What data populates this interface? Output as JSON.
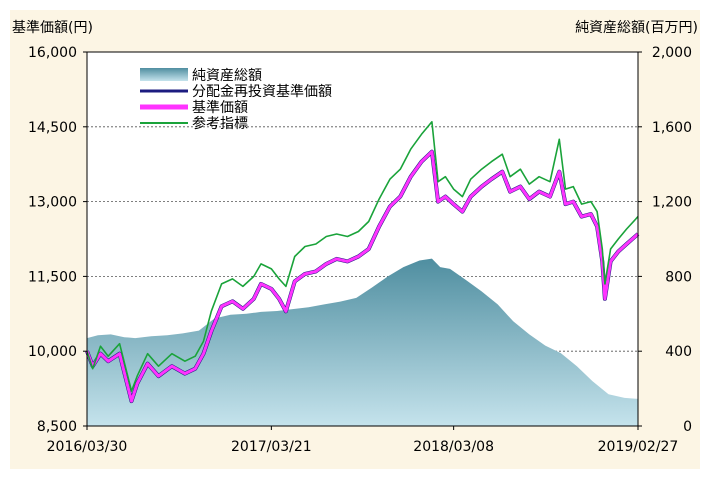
{
  "chart_data": {
    "type": "line",
    "y_left_title": "基準価額(円)",
    "y_right_title": "純資産総額(百万円)",
    "y_left_range": [
      8500,
      16000
    ],
    "y_left_ticks": [
      "8,500",
      "10,000",
      "11,500",
      "13,000",
      "14,500",
      "16,000"
    ],
    "y_left_tick_values": [
      8500,
      10000,
      11500,
      13000,
      14500,
      16000
    ],
    "y_right_range": [
      0,
      2000
    ],
    "y_right_ticks": [
      "0",
      "400",
      "800",
      "1,200",
      "1,600",
      "2,000"
    ],
    "y_right_tick_values": [
      0,
      400,
      800,
      1200,
      1600,
      2000
    ],
    "x_range": [
      "2016-03-30",
      "2019-02-27"
    ],
    "x_ticks": [
      "2016/03/30",
      "2017/03/21",
      "2018/03/08",
      "2019/02/27"
    ],
    "x_tick_dates": [
      "2016-03-30",
      "2017-03-21",
      "2018-03-08",
      "2019-02-27"
    ],
    "grid": "horizontal-dotted",
    "legend": {
      "placement": "top-left",
      "entries": [
        "純資産総額",
        "分配金再投資基準価額",
        "基準価額",
        "参考指標"
      ]
    },
    "colors": {
      "area_top": "#4f8ea0",
      "area_bottom": "#c5e3ec",
      "reinvest": "#1c1c80",
      "nav": "#ff33ff",
      "benchmark": "#1aa33a",
      "frame_bg": "#fcf5e4"
    },
    "series": [
      {
        "name": "純資産総額",
        "axis": "right",
        "kind": "area",
        "points": [
          [
            "2016-03-30",
            470
          ],
          [
            "2016-04-20",
            485
          ],
          [
            "2016-05-15",
            490
          ],
          [
            "2016-06-10",
            475
          ],
          [
            "2016-07-01",
            470
          ],
          [
            "2016-08-01",
            480
          ],
          [
            "2016-09-01",
            485
          ],
          [
            "2016-10-01",
            495
          ],
          [
            "2016-11-01",
            510
          ],
          [
            "2016-12-01",
            575
          ],
          [
            "2017-01-01",
            595
          ],
          [
            "2017-02-01",
            600
          ],
          [
            "2017-03-01",
            610
          ],
          [
            "2017-04-01",
            615
          ],
          [
            "2017-05-01",
            625
          ],
          [
            "2017-06-01",
            635
          ],
          [
            "2017-07-01",
            650
          ],
          [
            "2017-08-01",
            665
          ],
          [
            "2017-09-01",
            685
          ],
          [
            "2017-10-01",
            740
          ],
          [
            "2017-11-01",
            800
          ],
          [
            "2017-12-01",
            850
          ],
          [
            "2018-01-01",
            885
          ],
          [
            "2018-01-25",
            895
          ],
          [
            "2018-02-10",
            850
          ],
          [
            "2018-03-01",
            840
          ],
          [
            "2018-04-01",
            780
          ],
          [
            "2018-05-01",
            720
          ],
          [
            "2018-06-01",
            650
          ],
          [
            "2018-07-01",
            560
          ],
          [
            "2018-08-01",
            490
          ],
          [
            "2018-09-01",
            430
          ],
          [
            "2018-10-01",
            390
          ],
          [
            "2018-11-01",
            320
          ],
          [
            "2018-12-01",
            240
          ],
          [
            "2019-01-01",
            170
          ],
          [
            "2019-02-01",
            150
          ],
          [
            "2019-02-27",
            145
          ]
        ]
      },
      {
        "name": "分配金再投資基準価額",
        "axis": "left",
        "kind": "line",
        "points": [
          [
            "2016-03-30",
            10000
          ],
          [
            "2016-04-10",
            9700
          ],
          [
            "2016-04-25",
            9950
          ],
          [
            "2016-05-10",
            9800
          ],
          [
            "2016-06-01",
            9950
          ],
          [
            "2016-06-24",
            9000
          ],
          [
            "2016-07-05",
            9350
          ],
          [
            "2016-07-25",
            9750
          ],
          [
            "2016-08-15",
            9500
          ],
          [
            "2016-09-10",
            9700
          ],
          [
            "2016-10-05",
            9550
          ],
          [
            "2016-10-25",
            9650
          ],
          [
            "2016-11-10",
            9950
          ],
          [
            "2016-11-25",
            10400
          ],
          [
            "2016-12-15",
            10900
          ],
          [
            "2017-01-05",
            11000
          ],
          [
            "2017-01-25",
            10850
          ],
          [
            "2017-02-15",
            11050
          ],
          [
            "2017-03-01",
            11350
          ],
          [
            "2017-03-21",
            11250
          ],
          [
            "2017-04-05",
            11050
          ],
          [
            "2017-04-18",
            10800
          ],
          [
            "2017-05-05",
            11400
          ],
          [
            "2017-05-25",
            11550
          ],
          [
            "2017-06-15",
            11600
          ],
          [
            "2017-07-05",
            11750
          ],
          [
            "2017-07-25",
            11850
          ],
          [
            "2017-08-15",
            11800
          ],
          [
            "2017-09-05",
            11900
          ],
          [
            "2017-09-25",
            12050
          ],
          [
            "2017-10-15",
            12500
          ],
          [
            "2017-11-05",
            12900
          ],
          [
            "2017-11-25",
            13100
          ],
          [
            "2017-12-15",
            13500
          ],
          [
            "2018-01-05",
            13800
          ],
          [
            "2018-01-25",
            14000
          ],
          [
            "2018-02-06",
            13000
          ],
          [
            "2018-02-20",
            13100
          ],
          [
            "2018-03-08",
            12950
          ],
          [
            "2018-03-25",
            12800
          ],
          [
            "2018-04-10",
            13100
          ],
          [
            "2018-05-01",
            13300
          ],
          [
            "2018-05-20",
            13450
          ],
          [
            "2018-06-10",
            13600
          ],
          [
            "2018-06-25",
            13200
          ],
          [
            "2018-07-15",
            13300
          ],
          [
            "2018-08-01",
            13050
          ],
          [
            "2018-08-20",
            13200
          ],
          [
            "2018-09-10",
            13100
          ],
          [
            "2018-09-28",
            13600
          ],
          [
            "2018-10-10",
            12950
          ],
          [
            "2018-10-25",
            13000
          ],
          [
            "2018-11-10",
            12700
          ],
          [
            "2018-11-28",
            12750
          ],
          [
            "2018-12-10",
            12500
          ],
          [
            "2018-12-20",
            11800
          ],
          [
            "2018-12-25",
            11050
          ],
          [
            "2019-01-05",
            11800
          ],
          [
            "2019-01-20",
            12000
          ],
          [
            "2019-02-05",
            12150
          ],
          [
            "2019-02-27",
            12350
          ]
        ]
      },
      {
        "name": "基準価額",
        "axis": "left",
        "kind": "line",
        "points": [
          [
            "2016-03-30",
            10000
          ],
          [
            "2016-04-10",
            9700
          ],
          [
            "2016-04-25",
            9950
          ],
          [
            "2016-05-10",
            9800
          ],
          [
            "2016-06-01",
            9950
          ],
          [
            "2016-06-24",
            9000
          ],
          [
            "2016-07-05",
            9350
          ],
          [
            "2016-07-25",
            9750
          ],
          [
            "2016-08-15",
            9500
          ],
          [
            "2016-09-10",
            9700
          ],
          [
            "2016-10-05",
            9550
          ],
          [
            "2016-10-25",
            9650
          ],
          [
            "2016-11-10",
            9950
          ],
          [
            "2016-11-25",
            10400
          ],
          [
            "2016-12-15",
            10900
          ],
          [
            "2017-01-05",
            11000
          ],
          [
            "2017-01-25",
            10850
          ],
          [
            "2017-02-15",
            11050
          ],
          [
            "2017-03-01",
            11350
          ],
          [
            "2017-03-21",
            11250
          ],
          [
            "2017-04-05",
            11050
          ],
          [
            "2017-04-18",
            10800
          ],
          [
            "2017-05-05",
            11400
          ],
          [
            "2017-05-25",
            11550
          ],
          [
            "2017-06-15",
            11600
          ],
          [
            "2017-07-05",
            11750
          ],
          [
            "2017-07-25",
            11850
          ],
          [
            "2017-08-15",
            11800
          ],
          [
            "2017-09-05",
            11900
          ],
          [
            "2017-09-25",
            12050
          ],
          [
            "2017-10-15",
            12500
          ],
          [
            "2017-11-05",
            12900
          ],
          [
            "2017-11-25",
            13100
          ],
          [
            "2017-12-15",
            13500
          ],
          [
            "2018-01-05",
            13800
          ],
          [
            "2018-01-25",
            14000
          ],
          [
            "2018-02-06",
            13000
          ],
          [
            "2018-02-20",
            13100
          ],
          [
            "2018-03-08",
            12950
          ],
          [
            "2018-03-25",
            12800
          ],
          [
            "2018-04-10",
            13100
          ],
          [
            "2018-05-01",
            13300
          ],
          [
            "2018-05-20",
            13450
          ],
          [
            "2018-06-10",
            13600
          ],
          [
            "2018-06-25",
            13200
          ],
          [
            "2018-07-15",
            13300
          ],
          [
            "2018-08-01",
            13050
          ],
          [
            "2018-08-20",
            13200
          ],
          [
            "2018-09-10",
            13100
          ],
          [
            "2018-09-28",
            13600
          ],
          [
            "2018-10-10",
            12950
          ],
          [
            "2018-10-25",
            13000
          ],
          [
            "2018-11-10",
            12700
          ],
          [
            "2018-11-28",
            12750
          ],
          [
            "2018-12-10",
            12500
          ],
          [
            "2018-12-20",
            11800
          ],
          [
            "2018-12-25",
            11050
          ],
          [
            "2019-01-05",
            11800
          ],
          [
            "2019-01-20",
            12000
          ],
          [
            "2019-02-05",
            12150
          ],
          [
            "2019-02-27",
            12350
          ]
        ]
      },
      {
        "name": "参考指標",
        "axis": "left",
        "kind": "line",
        "points": [
          [
            "2016-03-30",
            10000
          ],
          [
            "2016-04-10",
            9650
          ],
          [
            "2016-04-25",
            10100
          ],
          [
            "2016-05-10",
            9900
          ],
          [
            "2016-06-01",
            10150
          ],
          [
            "2016-06-24",
            9200
          ],
          [
            "2016-07-05",
            9500
          ],
          [
            "2016-07-25",
            9950
          ],
          [
            "2016-08-15",
            9700
          ],
          [
            "2016-09-10",
            9950
          ],
          [
            "2016-10-05",
            9800
          ],
          [
            "2016-10-25",
            9900
          ],
          [
            "2016-11-10",
            10200
          ],
          [
            "2016-11-25",
            10800
          ],
          [
            "2016-12-15",
            11350
          ],
          [
            "2017-01-05",
            11450
          ],
          [
            "2017-01-25",
            11300
          ],
          [
            "2017-02-15",
            11500
          ],
          [
            "2017-03-01",
            11750
          ],
          [
            "2017-03-21",
            11650
          ],
          [
            "2017-04-05",
            11450
          ],
          [
            "2017-04-18",
            11300
          ],
          [
            "2017-05-05",
            11900
          ],
          [
            "2017-05-25",
            12100
          ],
          [
            "2017-06-15",
            12150
          ],
          [
            "2017-07-05",
            12300
          ],
          [
            "2017-07-25",
            12350
          ],
          [
            "2017-08-15",
            12300
          ],
          [
            "2017-09-05",
            12400
          ],
          [
            "2017-09-25",
            12600
          ],
          [
            "2017-10-15",
            13050
          ],
          [
            "2017-11-05",
            13450
          ],
          [
            "2017-11-25",
            13650
          ],
          [
            "2017-12-15",
            14050
          ],
          [
            "2018-01-05",
            14350
          ],
          [
            "2018-01-25",
            14600
          ],
          [
            "2018-02-06",
            13400
          ],
          [
            "2018-02-20",
            13500
          ],
          [
            "2018-03-08",
            13250
          ],
          [
            "2018-03-25",
            13100
          ],
          [
            "2018-04-10",
            13450
          ],
          [
            "2018-05-01",
            13650
          ],
          [
            "2018-05-20",
            13800
          ],
          [
            "2018-06-10",
            13950
          ],
          [
            "2018-06-25",
            13500
          ],
          [
            "2018-07-15",
            13650
          ],
          [
            "2018-08-01",
            13350
          ],
          [
            "2018-08-20",
            13500
          ],
          [
            "2018-09-10",
            13400
          ],
          [
            "2018-09-28",
            14250
          ],
          [
            "2018-10-10",
            13250
          ],
          [
            "2018-10-25",
            13300
          ],
          [
            "2018-11-10",
            12950
          ],
          [
            "2018-11-28",
            13000
          ],
          [
            "2018-12-10",
            12800
          ],
          [
            "2018-12-20",
            12050
          ],
          [
            "2018-12-25",
            11350
          ],
          [
            "2019-01-05",
            12050
          ],
          [
            "2019-01-20",
            12250
          ],
          [
            "2019-02-05",
            12450
          ],
          [
            "2019-02-27",
            12700
          ]
        ]
      }
    ]
  }
}
